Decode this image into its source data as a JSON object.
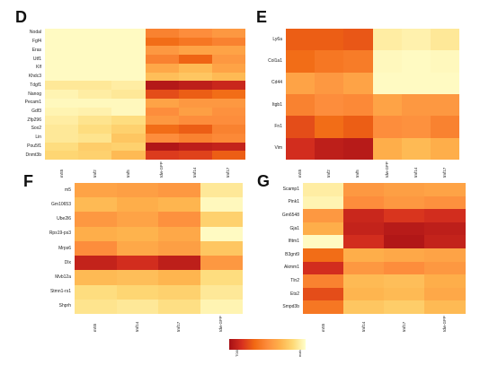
{
  "chart_data": [
    {
      "type": "heatmap",
      "panel": "D",
      "rows": [
        "Nodal",
        "Fgf4",
        "Eras",
        "Utf1",
        "Klf",
        "Khdc3",
        "Tdgf1",
        "Nanog",
        "Pecam1",
        "Gdf3",
        "Zfp296",
        "Sox2",
        "Lin",
        "Pou5f1",
        "Dnmt3b"
      ],
      "columns": [
        "mS5",
        "tmf2",
        "tmf5",
        "tdw-GFP",
        "tmf14",
        "tmf17"
      ],
      "values": [
        [
          0.02,
          0.02,
          0.02,
          0.55,
          0.5,
          0.45
        ],
        [
          0.02,
          0.02,
          0.02,
          0.65,
          0.6,
          0.55
        ],
        [
          0.02,
          0.02,
          0.02,
          0.45,
          0.4,
          0.4
        ],
        [
          0.02,
          0.02,
          0.02,
          0.55,
          0.68,
          0.45
        ],
        [
          0.02,
          0.02,
          0.02,
          0.38,
          0.3,
          0.4
        ],
        [
          0.02,
          0.02,
          0.02,
          0.28,
          0.25,
          0.3
        ],
        [
          0.1,
          0.1,
          0.08,
          0.95,
          0.92,
          0.88
        ],
        [
          0.05,
          0.08,
          0.1,
          0.75,
          0.7,
          0.65
        ],
        [
          0.03,
          0.03,
          0.03,
          0.4,
          0.45,
          0.45
        ],
        [
          0.05,
          0.06,
          0.03,
          0.5,
          0.42,
          0.48
        ],
        [
          0.08,
          0.12,
          0.15,
          0.45,
          0.5,
          0.5
        ],
        [
          0.1,
          0.15,
          0.2,
          0.65,
          0.7,
          0.55
        ],
        [
          0.1,
          0.12,
          0.25,
          0.5,
          0.55,
          0.52
        ],
        [
          0.15,
          0.22,
          0.2,
          0.96,
          0.92,
          0.9
        ],
        [
          0.18,
          0.2,
          0.3,
          0.8,
          0.78,
          0.7
        ]
      ]
    },
    {
      "type": "heatmap",
      "panel": "E",
      "rows": [
        "Ly6a",
        "Col1a1",
        "Cd44",
        "Itgb1",
        "Fn1",
        "Vim"
      ],
      "columns": [
        "mS5",
        "tmf2",
        "tmf5",
        "tdw-GFP",
        "tmf14",
        "tmf17"
      ],
      "values": [
        [
          0.7,
          0.7,
          0.72,
          0.08,
          0.06,
          0.1
        ],
        [
          0.65,
          0.6,
          0.58,
          0.03,
          0.02,
          0.03
        ],
        [
          0.4,
          0.45,
          0.4,
          0.02,
          0.02,
          0.02
        ],
        [
          0.55,
          0.5,
          0.52,
          0.4,
          0.45,
          0.45
        ],
        [
          0.75,
          0.65,
          0.7,
          0.5,
          0.48,
          0.55
        ],
        [
          0.85,
          0.92,
          0.94,
          0.35,
          0.3,
          0.35
        ]
      ]
    },
    {
      "type": "heatmap",
      "panel": "F",
      "rows": [
        "m5",
        "Gm10653",
        "Ube2l6",
        "Rps19-ps3",
        "Mrps6",
        "Dlx",
        "Mvb12a",
        "Stmn1-rs1",
        "Shprh"
      ],
      "columns": [
        "mS5",
        "tmf14",
        "tmf17",
        "tdw-GFP"
      ],
      "values": [
        [
          0.4,
          0.42,
          0.45,
          0.1
        ],
        [
          0.3,
          0.35,
          0.32,
          0.03
        ],
        [
          0.45,
          0.4,
          0.48,
          0.2
        ],
        [
          0.35,
          0.33,
          0.38,
          0.02
        ],
        [
          0.5,
          0.38,
          0.42,
          0.25
        ],
        [
          0.9,
          0.85,
          0.92,
          0.45
        ],
        [
          0.3,
          0.28,
          0.32,
          0.15
        ],
        [
          0.15,
          0.18,
          0.2,
          0.1
        ],
        [
          0.12,
          0.1,
          0.14,
          0.05
        ]
      ]
    },
    {
      "type": "heatmap",
      "panel": "G",
      "rows": [
        "Scamp1",
        "Pink1",
        "Gm6548",
        "Gja1",
        "Ifitm1",
        "B3gnt9",
        "Akmm1",
        "Tln2",
        "Ets2",
        "Smpd3b"
      ],
      "columns": [
        "mS5",
        "tmf14",
        "tmf17",
        "tdw-GFP"
      ],
      "values": [
        [
          0.08,
          0.45,
          0.42,
          0.4
        ],
        [
          0.05,
          0.5,
          0.45,
          0.48
        ],
        [
          0.45,
          0.88,
          0.82,
          0.85
        ],
        [
          0.35,
          0.9,
          0.94,
          0.92
        ],
        [
          0.02,
          0.85,
          0.96,
          0.9
        ],
        [
          0.65,
          0.35,
          0.38,
          0.4
        ],
        [
          0.85,
          0.45,
          0.5,
          0.45
        ],
        [
          0.55,
          0.3,
          0.28,
          0.35
        ],
        [
          0.75,
          0.32,
          0.3,
          0.38
        ],
        [
          0.6,
          0.25,
          0.22,
          0.3
        ]
      ]
    }
  ],
  "legend": {
    "low_label": "T0IX",
    "high_label": "mah",
    "colors": [
      "#a50f15",
      "#d7301f",
      "#f16913",
      "#fd8d3c",
      "#feb24c",
      "#fed976",
      "#ffffcc"
    ]
  },
  "panels": {
    "D": {
      "letter": "D"
    },
    "E": {
      "letter": "E"
    },
    "F": {
      "letter": "F"
    },
    "G": {
      "letter": "G"
    }
  }
}
